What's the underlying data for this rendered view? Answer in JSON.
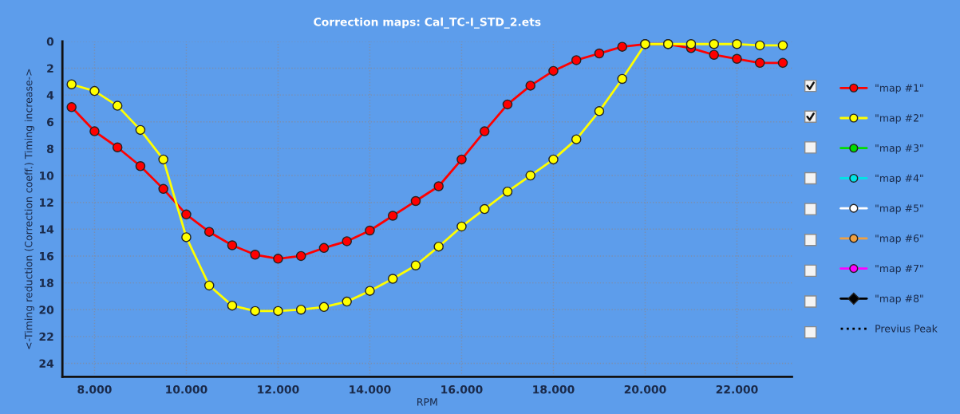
{
  "chart_data": {
    "type": "line",
    "title": "Correction maps: Cal_TC-I_STD_2.ets",
    "xlabel": "RPM",
    "ylabel": "<-Timing reduction (Correction coeff.) Timing increase->",
    "x": [
      7500,
      8000,
      8500,
      9000,
      9500,
      10000,
      10500,
      11000,
      11500,
      12000,
      12500,
      13000,
      13500,
      14000,
      14500,
      15000,
      15500,
      16000,
      16500,
      17000,
      17500,
      18000,
      18500,
      19000,
      19500,
      20000,
      20500,
      21000,
      21500,
      22000,
      22500,
      23000
    ],
    "series": [
      {
        "name": "\"map #1\"",
        "color": "#ff0000",
        "marker": "circle",
        "values": [
          4.9,
          6.7,
          7.9,
          9.3,
          11.0,
          12.9,
          14.2,
          15.2,
          15.9,
          16.2,
          16.0,
          15.4,
          14.9,
          14.1,
          13.0,
          11.9,
          10.8,
          8.8,
          6.7,
          4.7,
          3.3,
          2.2,
          1.4,
          0.9,
          0.4,
          0.2,
          0.2,
          0.5,
          1.0,
          1.3,
          1.6,
          1.6
        ]
      },
      {
        "name": "\"map #2\"",
        "color": "#ffff00",
        "marker": "circle",
        "values": [
          3.2,
          3.7,
          4.8,
          6.6,
          8.8,
          14.6,
          18.2,
          19.7,
          20.1,
          20.1,
          20.0,
          19.8,
          19.4,
          18.6,
          17.7,
          16.7,
          15.3,
          13.8,
          12.5,
          11.2,
          10.0,
          8.8,
          7.3,
          5.2,
          2.8,
          0.2,
          0.2,
          0.2,
          0.2,
          0.2,
          0.3,
          0.3
        ]
      },
      {
        "name": "\"map #3\"",
        "color": "#00dd00",
        "marker": "circle",
        "values": [
          null,
          null,
          null,
          null,
          null,
          null,
          null,
          null,
          null,
          null,
          null,
          null,
          null,
          null,
          null,
          null,
          null,
          null,
          null,
          null,
          null,
          null,
          null,
          null,
          null,
          null,
          null,
          null,
          null,
          null,
          null,
          null
        ]
      },
      {
        "name": "\"map #4\"",
        "color": "#00e5e5",
        "marker": "circle",
        "values": [
          null,
          null,
          null,
          null,
          null,
          null,
          null,
          null,
          null,
          null,
          null,
          null,
          null,
          null,
          null,
          null,
          null,
          null,
          null,
          null,
          null,
          null,
          null,
          null,
          null,
          null,
          null,
          null,
          null,
          null,
          null,
          null
        ]
      },
      {
        "name": "\"map #5\"",
        "color": "#ffffff",
        "marker": "circle",
        "values": [
          null,
          null,
          null,
          null,
          null,
          null,
          null,
          null,
          null,
          null,
          null,
          null,
          null,
          null,
          null,
          null,
          null,
          null,
          null,
          null,
          null,
          null,
          null,
          null,
          null,
          null,
          null,
          null,
          null,
          null,
          null,
          null
        ]
      },
      {
        "name": "\"map #6\"",
        "color": "#f0a040",
        "marker": "circle",
        "values": [
          null,
          null,
          null,
          null,
          null,
          null,
          null,
          null,
          null,
          null,
          null,
          null,
          null,
          null,
          null,
          null,
          null,
          null,
          null,
          null,
          null,
          null,
          null,
          null,
          null,
          null,
          null,
          null,
          null,
          null,
          null,
          null
        ]
      },
      {
        "name": "\"map #7\"",
        "color": "#ff00ff",
        "marker": "circle",
        "values": [
          null,
          null,
          null,
          null,
          null,
          null,
          null,
          null,
          null,
          null,
          null,
          null,
          null,
          null,
          null,
          null,
          null,
          null,
          null,
          null,
          null,
          null,
          null,
          null,
          null,
          null,
          null,
          null,
          null,
          null,
          null,
          null
        ]
      },
      {
        "name": "\"map #8\"",
        "color": "#000000",
        "marker": "diamond",
        "values": [
          null,
          null,
          null,
          null,
          null,
          null,
          null,
          null,
          null,
          null,
          null,
          null,
          null,
          null,
          null,
          null,
          null,
          null,
          null,
          null,
          null,
          null,
          null,
          null,
          null,
          null,
          null,
          null,
          null,
          null,
          null,
          null
        ]
      },
      {
        "name": "Previus Peak",
        "color": "#000000",
        "marker": "none",
        "line_style": "dotted",
        "values": [
          null,
          null,
          null,
          null,
          null,
          null,
          null,
          null,
          null,
          null,
          null,
          null,
          null,
          null,
          null,
          null,
          null,
          null,
          null,
          null,
          null,
          null,
          null,
          null,
          null,
          null,
          null,
          null,
          null,
          null,
          null,
          null
        ]
      }
    ],
    "xlim": [
      7300,
      23200
    ],
    "ylim": [
      25,
      0
    ],
    "xticks": [
      {
        "value": 8000,
        "label": "8.000"
      },
      {
        "value": 10000,
        "label": "10.000"
      },
      {
        "value": 12000,
        "label": "12.000"
      },
      {
        "value": 14000,
        "label": "14.000"
      },
      {
        "value": 16000,
        "label": "16.000"
      },
      {
        "value": 18000,
        "label": "18.000"
      },
      {
        "value": 20000,
        "label": "20.000"
      },
      {
        "value": 22000,
        "label": "22.000"
      }
    ],
    "yticks": [
      0,
      2,
      4,
      6,
      8,
      10,
      12,
      14,
      16,
      18,
      20,
      22,
      24
    ],
    "grid": true,
    "legend": "right"
  }
}
